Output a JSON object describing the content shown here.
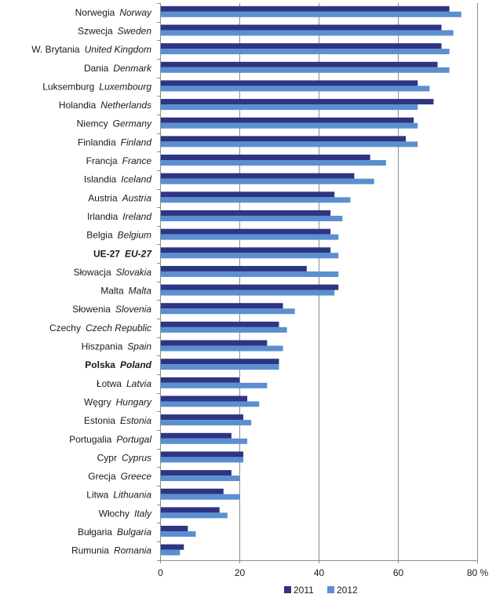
{
  "chart_data": {
    "type": "bar",
    "orientation": "horizontal",
    "categories": [
      {
        "pl": "Norwegia",
        "en": "Norway",
        "bold": false
      },
      {
        "pl": "Szwecja",
        "en": "Sweden",
        "bold": false
      },
      {
        "pl": "W. Brytania",
        "en": "United Kingdom",
        "bold": false
      },
      {
        "pl": "Dania",
        "en": "Denmark",
        "bold": false
      },
      {
        "pl": "Luksemburg",
        "en": "Luxembourg",
        "bold": false
      },
      {
        "pl": "Holandia",
        "en": "Netherlands",
        "bold": false
      },
      {
        "pl": "Niemcy",
        "en": "Germany",
        "bold": false
      },
      {
        "pl": "Finlandia",
        "en": "Finland",
        "bold": false
      },
      {
        "pl": "Francja",
        "en": "France",
        "bold": false
      },
      {
        "pl": "Islandia",
        "en": "Iceland",
        "bold": false
      },
      {
        "pl": "Austria",
        "en": "Austria",
        "bold": false
      },
      {
        "pl": "Irlandia",
        "en": "Ireland",
        "bold": false
      },
      {
        "pl": "Belgia",
        "en": "Belgium",
        "bold": false
      },
      {
        "pl": "UE-27",
        "en": "EU-27",
        "bold": true
      },
      {
        "pl": "Słowacja",
        "en": "Slovakia",
        "bold": false
      },
      {
        "pl": "Malta",
        "en": "Malta",
        "bold": false
      },
      {
        "pl": "Słowenia",
        "en": "Slovenia",
        "bold": false
      },
      {
        "pl": "Czechy",
        "en": "Czech Republic",
        "bold": false
      },
      {
        "pl": "Hiszpania",
        "en": "Spain",
        "bold": false
      },
      {
        "pl": "Polska",
        "en": "Poland",
        "bold": true
      },
      {
        "pl": "Łotwa",
        "en": "Latvia",
        "bold": false
      },
      {
        "pl": "Węgry",
        "en": "Hungary",
        "bold": false
      },
      {
        "pl": "Estonia",
        "en": "Estonia",
        "bold": false
      },
      {
        "pl": "Portugalia",
        "en": "Portugal",
        "bold": false
      },
      {
        "pl": "Cypr",
        "en": "Cyprus",
        "bold": false
      },
      {
        "pl": "Grecja",
        "en": "Greece",
        "bold": false
      },
      {
        "pl": "Litwa",
        "en": "Lithuania",
        "bold": false
      },
      {
        "pl": "Włochy",
        "en": "Italy",
        "bold": false
      },
      {
        "pl": "Bułgaria",
        "en": "Bulgaria",
        "bold": false
      },
      {
        "pl": "Rumunia",
        "en": "Romania",
        "bold": false
      }
    ],
    "series": [
      {
        "name": "2011",
        "color": "#2e3582",
        "values": [
          73,
          71,
          71,
          70,
          65,
          69,
          64,
          62,
          53,
          49,
          44,
          43,
          43,
          43,
          37,
          45,
          31,
          30,
          27,
          30,
          20,
          22,
          21,
          18,
          21,
          18,
          16,
          15,
          7,
          6
        ]
      },
      {
        "name": "2012",
        "color": "#5b8fd0",
        "values": [
          76,
          74,
          73,
          73,
          68,
          65,
          65,
          65,
          57,
          54,
          48,
          46,
          45,
          45,
          45,
          44,
          34,
          32,
          31,
          30,
          27,
          25,
          23,
          22,
          21,
          20,
          20,
          17,
          9,
          5
        ]
      }
    ],
    "x_ticks": [
      {
        "value": 0,
        "label": "0"
      },
      {
        "value": 20,
        "label": "20"
      },
      {
        "value": 40,
        "label": "40"
      },
      {
        "value": 60,
        "label": "60"
      },
      {
        "value": 80,
        "label": "80 %"
      }
    ],
    "xlim": [
      0,
      80
    ],
    "title": "",
    "xlabel": "",
    "ylabel": "",
    "grid": "vertical",
    "legend_position": "bottom-right"
  }
}
